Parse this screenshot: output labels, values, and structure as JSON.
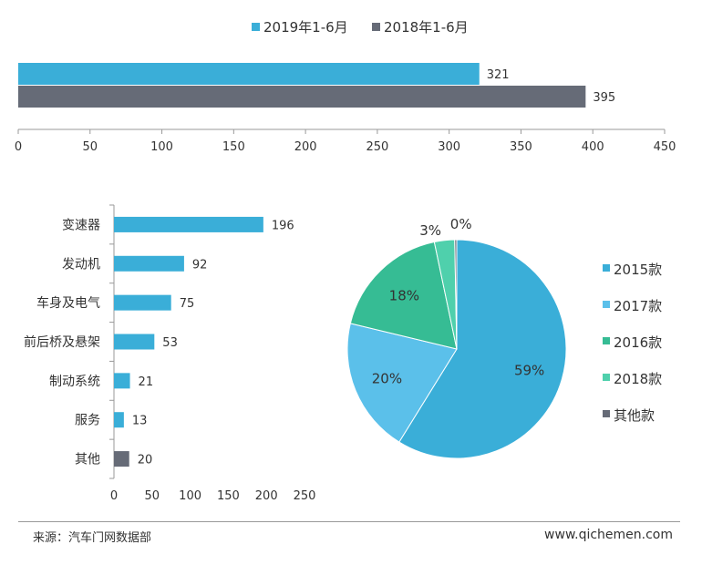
{
  "chart_data": [
    {
      "type": "bar",
      "orientation": "horizontal",
      "series": [
        {
          "name": "2019年1-6月",
          "values": [
            321
          ],
          "color": "#3aaed8"
        },
        {
          "name": "2018年1-6月",
          "values": [
            395
          ],
          "color": "#666b77"
        }
      ],
      "xlim": [
        0,
        450
      ],
      "xticks": [
        0,
        50,
        100,
        150,
        200,
        250,
        300,
        350,
        400,
        450
      ],
      "legend": "top",
      "grid": false
    },
    {
      "type": "bar",
      "orientation": "horizontal",
      "categories": [
        "变速器",
        "发动机",
        "车身及电气",
        "前后桥及悬架",
        "制动系统",
        "服务",
        "其他"
      ],
      "values": [
        196,
        92,
        75,
        53,
        21,
        13,
        20
      ],
      "colors": [
        "#3aaed8",
        "#3aaed8",
        "#3aaed8",
        "#3aaed8",
        "#3aaed8",
        "#3aaed8",
        "#666b77"
      ],
      "xlim": [
        0,
        250
      ],
      "xticks": [
        0,
        50,
        100,
        150,
        200,
        250
      ],
      "grid": false
    },
    {
      "type": "pie",
      "slices": [
        {
          "label": "2015款",
          "value": 59,
          "display": "59%",
          "color": "#3aaed8"
        },
        {
          "label": "2017款",
          "value": 20,
          "display": "20%",
          "color": "#5bc0ea"
        },
        {
          "label": "2016款",
          "value": 18,
          "display": "18%",
          "color": "#36bc94"
        },
        {
          "label": "2018款",
          "value": 3,
          "display": "3%",
          "color": "#4fd0ac"
        },
        {
          "label": "其他款",
          "value": 0.3,
          "display": "0%",
          "color": "#666b77"
        }
      ],
      "legend": "right"
    }
  ],
  "footer": {
    "source": "来源：汽车门网数据部",
    "website": "www.qichemen.com"
  }
}
